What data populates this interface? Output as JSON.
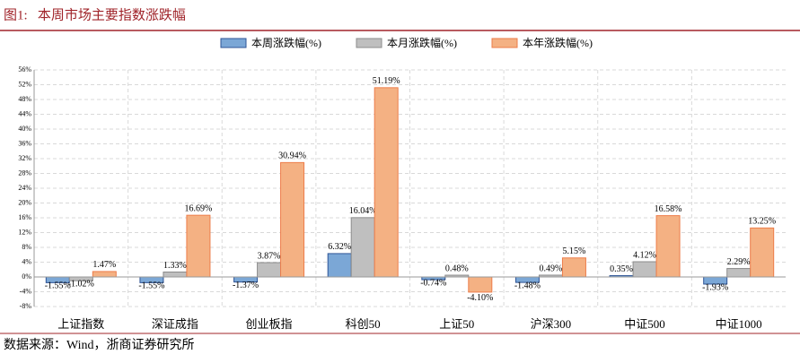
{
  "header": {
    "title": "图1:   本周市场主要指数涨跌幅",
    "source": "数据来源：Wind，浙商证券研究所"
  },
  "chart_data": {
    "type": "bar",
    "categories": [
      "上证指数",
      "深证成指",
      "创业板指",
      "科创50",
      "上证50",
      "沪深300",
      "中证500",
      "中证1000"
    ],
    "series": [
      {
        "name": "本周涨跌幅(%)",
        "color": "#7ba7d6",
        "stroke": "#2f5597",
        "values": [
          -1.55,
          -1.55,
          -1.37,
          6.32,
          -0.74,
          -1.48,
          0.35,
          -1.93
        ],
        "value_labels": [
          "-1.55%",
          "-1.55%",
          "-1.37%",
          "6.32%",
          "-0.74%",
          "-1.48%",
          "0.35%",
          "-1.93%"
        ]
      },
      {
        "name": "本月涨跌幅(%)",
        "color": "#bfbfbf",
        "stroke": "#8c8c8c",
        "values": [
          -1.02,
          1.33,
          3.87,
          16.04,
          0.48,
          0.49,
          4.12,
          2.29
        ],
        "value_labels": [
          "-1.02%",
          "1.33%",
          "3.87%",
          "16.04%",
          "0.48%",
          "0.49%",
          "4.12%",
          "2.29%"
        ]
      },
      {
        "name": "本年涨跌幅(%)",
        "color": "#f4b183",
        "stroke": "#ed7d4a",
        "values": [
          1.47,
          16.69,
          30.94,
          51.19,
          -4.1,
          5.15,
          16.58,
          13.25
        ],
        "value_labels": [
          "1.47%",
          "16.69%",
          "30.94%",
          "51.19%",
          "-4.10%",
          "5.15%",
          "16.58%",
          "13.25%"
        ]
      }
    ],
    "ylim": [
      -8,
      56
    ],
    "yticks": [
      {
        "value": -8,
        "label": "-8%"
      },
      {
        "value": -4,
        "label": "-4%"
      },
      {
        "value": 0,
        "label": "0%"
      },
      {
        "value": 4,
        "label": "4%"
      },
      {
        "value": 8,
        "label": "8%"
      },
      {
        "value": 12,
        "label": "12%"
      },
      {
        "value": 16,
        "label": "16%"
      },
      {
        "value": 20,
        "label": "20%"
      },
      {
        "value": 24,
        "label": "24%"
      },
      {
        "value": 28,
        "label": "28%"
      },
      {
        "value": 32,
        "label": "32%"
      },
      {
        "value": 36,
        "label": "36%"
      },
      {
        "value": 40,
        "label": "40%"
      },
      {
        "value": 44,
        "label": "44%"
      },
      {
        "value": 48,
        "label": "48%"
      },
      {
        "value": 52,
        "label": "52%"
      },
      {
        "value": 56,
        "label": "56%"
      }
    ],
    "grid": true
  }
}
